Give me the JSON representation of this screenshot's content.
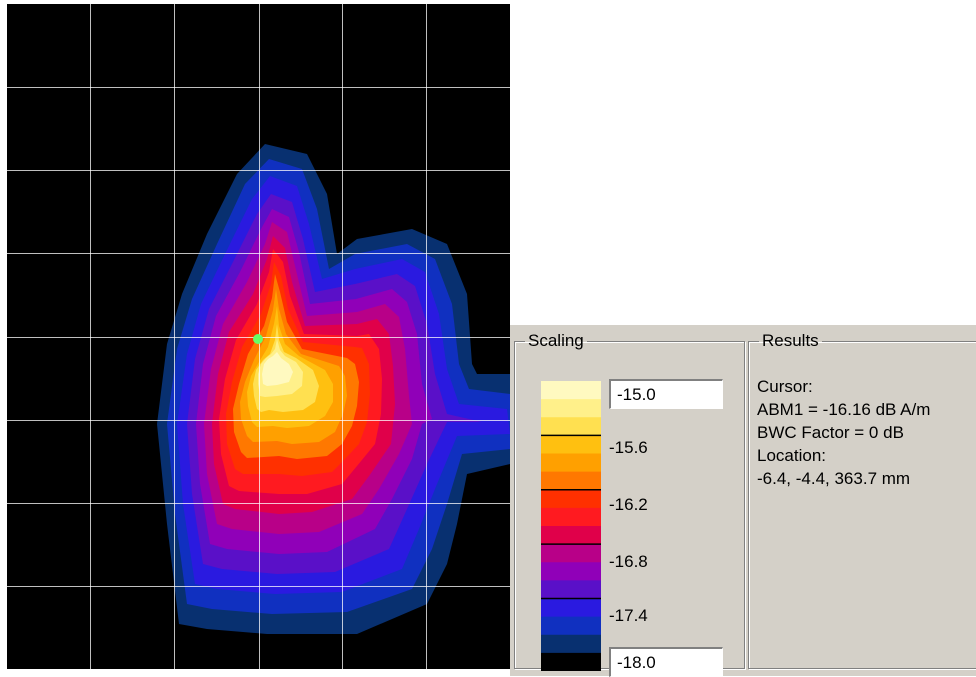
{
  "plot": {
    "background": "#000000",
    "grid_color": "#ffffff",
    "grid_x": [
      0.166,
      0.333,
      0.5,
      0.666,
      0.833
    ],
    "grid_y": [
      0.125,
      0.25,
      0.375,
      0.5,
      0.625,
      0.75,
      0.875
    ],
    "cursor_marker_color": "#66ff66"
  },
  "scaling": {
    "legend": "Scaling",
    "max_value": "-15.0",
    "min_value": "-18.0",
    "tick_labels": [
      "-15.6",
      "-16.2",
      "-16.8",
      "-17.4"
    ],
    "colors": [
      "#fff9c0",
      "#fff08a",
      "#ffe050",
      "#ffc010",
      "#ffa000",
      "#ff7800",
      "#ff3000",
      "#ff1a20",
      "#e0004a",
      "#b80088",
      "#9000b8",
      "#5a10c8",
      "#2a1ae0",
      "#1030c0",
      "#083070",
      "#000000"
    ]
  },
  "results": {
    "legend": "Results",
    "lines": [
      "Cursor:",
      "ABM1 = -16.16 dB A/m",
      "BWC Factor = 0 dB",
      "Location:",
      "-6.4, -4.4, 363.7 mm"
    ]
  }
}
